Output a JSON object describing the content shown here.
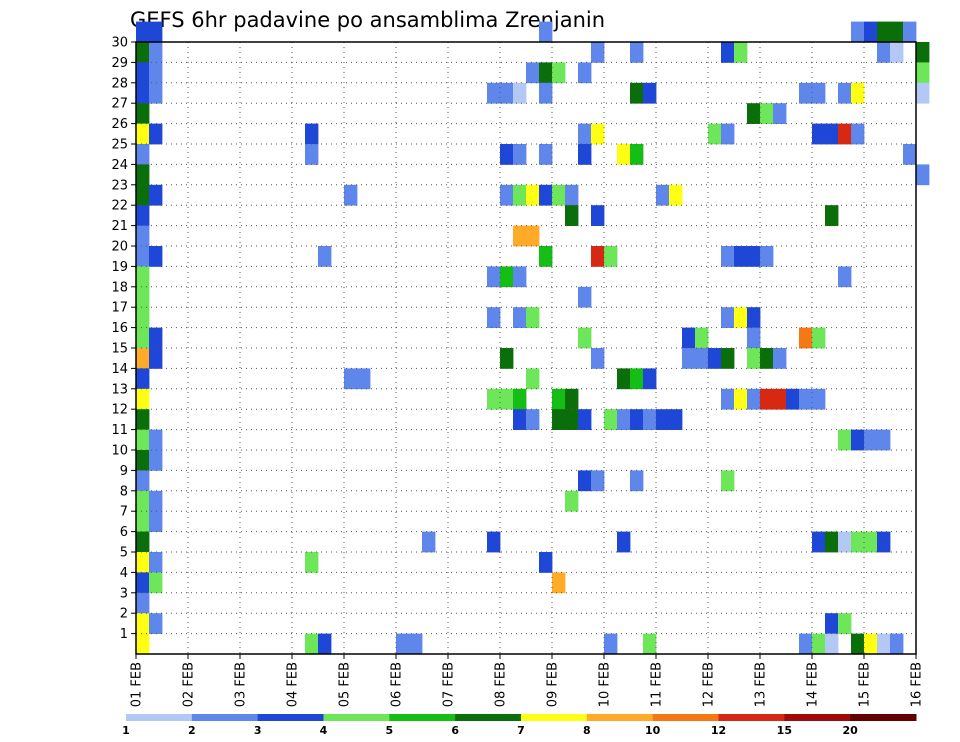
{
  "chart_data": {
    "type": "heatmap",
    "title": "GEFS 6hr padavine po ansamblima Zrenjanin",
    "x_tick_labels": [
      "01 FEB",
      "02 FEB",
      "03 FEB",
      "04 FEB",
      "05 FEB",
      "06 FEB",
      "07 FEB",
      "08 FEB",
      "09 FEB",
      "10 FEB",
      "11 FEB",
      "12 FEB",
      "13 FEB",
      "14 FEB",
      "15 FEB",
      "16 FEB"
    ],
    "y_tick_labels": [
      "1",
      "2",
      "3",
      "4",
      "5",
      "6",
      "7",
      "8",
      "9",
      "10",
      "11",
      "12",
      "13",
      "14",
      "15",
      "16",
      "17",
      "18",
      "19",
      "20",
      "21",
      "22",
      "23",
      "24",
      "25",
      "26",
      "27",
      "28",
      "29",
      "30"
    ],
    "x_range_days": [
      0,
      15
    ],
    "y_range_member": [
      0,
      30
    ],
    "time_step_hours": 6,
    "grid": true,
    "legend": {
      "placement": "bottom",
      "boundaries": [
        "1",
        "2",
        "3",
        "4",
        "5",
        "6",
        "7",
        "8",
        "10",
        "12",
        "15",
        "20"
      ],
      "colors": [
        "#b4c8f5",
        "#5f87eb",
        "#1e46d7",
        "#6ee65a",
        "#14be14",
        "#0a6e0a",
        "#ffff14",
        "#ffaa28",
        "#f57814",
        "#d72814",
        "#a00a0a",
        "#640000"
      ]
    },
    "cells": [
      [
        0,
        30,
        2
      ],
      [
        1,
        30,
        2
      ],
      [
        0,
        29,
        5
      ],
      [
        1,
        29,
        1
      ],
      [
        0,
        28,
        2
      ],
      [
        1,
        28,
        1
      ],
      [
        0,
        27,
        2
      ],
      [
        1,
        27,
        1
      ],
      [
        0,
        26,
        5
      ],
      [
        0,
        25,
        6
      ],
      [
        1,
        25,
        2
      ],
      [
        0,
        24,
        1
      ],
      [
        0,
        23,
        5
      ],
      [
        0,
        22,
        5
      ],
      [
        1,
        22,
        2
      ],
      [
        0,
        21,
        2
      ],
      [
        0,
        20,
        1
      ],
      [
        0,
        19,
        1
      ],
      [
        1,
        19,
        2
      ],
      [
        0,
        18,
        3
      ],
      [
        0,
        17,
        3
      ],
      [
        0,
        16,
        3
      ],
      [
        0,
        15,
        3
      ],
      [
        1,
        15,
        2
      ],
      [
        0,
        14,
        7
      ],
      [
        1,
        14,
        2
      ],
      [
        0,
        13,
        2
      ],
      [
        0,
        12,
        6
      ],
      [
        0,
        11,
        5
      ],
      [
        0,
        10,
        3
      ],
      [
        1,
        10,
        1
      ],
      [
        0,
        9,
        5
      ],
      [
        1,
        9,
        1
      ],
      [
        0,
        8,
        1
      ],
      [
        0,
        7,
        3
      ],
      [
        1,
        7,
        1
      ],
      [
        0,
        6,
        3
      ],
      [
        1,
        6,
        1
      ],
      [
        0,
        5,
        5
      ],
      [
        0,
        4,
        6
      ],
      [
        1,
        4,
        1
      ],
      [
        0,
        3,
        2
      ],
      [
        1,
        3,
        3
      ],
      [
        0,
        2,
        1
      ],
      [
        0,
        1,
        6
      ],
      [
        1,
        1,
        1
      ],
      [
        0,
        0,
        6
      ],
      [
        31,
        30,
        1
      ],
      [
        55,
        30,
        1
      ],
      [
        56,
        30,
        2
      ],
      [
        57,
        30,
        5
      ],
      [
        58,
        30,
        5
      ],
      [
        59,
        30,
        1
      ],
      [
        35,
        29,
        1
      ],
      [
        38,
        29,
        1
      ],
      [
        45,
        29,
        2
      ],
      [
        46,
        29,
        3
      ],
      [
        57,
        29,
        1
      ],
      [
        58,
        29,
        0
      ],
      [
        60,
        29,
        5
      ],
      [
        30,
        28,
        1
      ],
      [
        31,
        28,
        5
      ],
      [
        32,
        28,
        3
      ],
      [
        34,
        28,
        1
      ],
      [
        60,
        28,
        3
      ],
      [
        27,
        27,
        1
      ],
      [
        28,
        27,
        1
      ],
      [
        29,
        27,
        0
      ],
      [
        31,
        27,
        1
      ],
      [
        38,
        27,
        5
      ],
      [
        39,
        27,
        2
      ],
      [
        51,
        27,
        1
      ],
      [
        52,
        27,
        1
      ],
      [
        54,
        27,
        1
      ],
      [
        55,
        27,
        6
      ],
      [
        60,
        27,
        0
      ],
      [
        47,
        26,
        5
      ],
      [
        48,
        26,
        3
      ],
      [
        49,
        26,
        1
      ],
      [
        13,
        25,
        2
      ],
      [
        34,
        25,
        1
      ],
      [
        35,
        25,
        6
      ],
      [
        44,
        25,
        3
      ],
      [
        45,
        25,
        1
      ],
      [
        52,
        25,
        2
      ],
      [
        53,
        25,
        2
      ],
      [
        54,
        25,
        9
      ],
      [
        55,
        25,
        1
      ],
      [
        13,
        24,
        1
      ],
      [
        28,
        24,
        2
      ],
      [
        29,
        24,
        1
      ],
      [
        31,
        24,
        1
      ],
      [
        34,
        24,
        2
      ],
      [
        37,
        24,
        6
      ],
      [
        38,
        24,
        4
      ],
      [
        59,
        24,
        1
      ],
      [
        60,
        23,
        1
      ],
      [
        16,
        22,
        1
      ],
      [
        28,
        22,
        1
      ],
      [
        29,
        22,
        3
      ],
      [
        30,
        22,
        6
      ],
      [
        31,
        22,
        2
      ],
      [
        32,
        22,
        3
      ],
      [
        33,
        22,
        1
      ],
      [
        40,
        22,
        1
      ],
      [
        41,
        22,
        6
      ],
      [
        33,
        21,
        5
      ],
      [
        35,
        21,
        2
      ],
      [
        53,
        21,
        5
      ],
      [
        29,
        20,
        7
      ],
      [
        30,
        20,
        7
      ],
      [
        14,
        19,
        1
      ],
      [
        31,
        19,
        4
      ],
      [
        35,
        19,
        9
      ],
      [
        36,
        19,
        3
      ],
      [
        45,
        19,
        1
      ],
      [
        46,
        19,
        2
      ],
      [
        47,
        19,
        2
      ],
      [
        48,
        19,
        1
      ],
      [
        27,
        18,
        1
      ],
      [
        28,
        18,
        4
      ],
      [
        29,
        18,
        1
      ],
      [
        54,
        18,
        1
      ],
      [
        34,
        17,
        1
      ],
      [
        27,
        16,
        1
      ],
      [
        29,
        16,
        1
      ],
      [
        30,
        16,
        3
      ],
      [
        45,
        16,
        1
      ],
      [
        46,
        16,
        6
      ],
      [
        47,
        16,
        2
      ],
      [
        34,
        15,
        3
      ],
      [
        42,
        15,
        2
      ],
      [
        43,
        15,
        3
      ],
      [
        47,
        15,
        1
      ],
      [
        51,
        15,
        8
      ],
      [
        52,
        15,
        3
      ],
      [
        28,
        14,
        5
      ],
      [
        35,
        14,
        1
      ],
      [
        42,
        14,
        1
      ],
      [
        43,
        14,
        1
      ],
      [
        44,
        14,
        2
      ],
      [
        45,
        14,
        5
      ],
      [
        47,
        14,
        3
      ],
      [
        48,
        14,
        5
      ],
      [
        49,
        14,
        1
      ],
      [
        16,
        13,
        1
      ],
      [
        17,
        13,
        1
      ],
      [
        30,
        13,
        3
      ],
      [
        37,
        13,
        5
      ],
      [
        38,
        13,
        4
      ],
      [
        39,
        13,
        2
      ],
      [
        27,
        12,
        3
      ],
      [
        28,
        12,
        3
      ],
      [
        29,
        12,
        4
      ],
      [
        32,
        12,
        4
      ],
      [
        33,
        12,
        5
      ],
      [
        45,
        12,
        1
      ],
      [
        46,
        12,
        6
      ],
      [
        47,
        12,
        1
      ],
      [
        48,
        12,
        9
      ],
      [
        49,
        12,
        9
      ],
      [
        50,
        12,
        2
      ],
      [
        51,
        12,
        1
      ],
      [
        52,
        12,
        1
      ],
      [
        29,
        11,
        2
      ],
      [
        30,
        11,
        1
      ],
      [
        32,
        11,
        5
      ],
      [
        33,
        11,
        5
      ],
      [
        34,
        11,
        2
      ],
      [
        36,
        11,
        3
      ],
      [
        37,
        11,
        1
      ],
      [
        38,
        11,
        2
      ],
      [
        39,
        11,
        1
      ],
      [
        40,
        11,
        2
      ],
      [
        41,
        11,
        2
      ],
      [
        54,
        10,
        3
      ],
      [
        55,
        10,
        2
      ],
      [
        56,
        10,
        1
      ],
      [
        57,
        10,
        1
      ],
      [
        34,
        8,
        2
      ],
      [
        35,
        8,
        1
      ],
      [
        38,
        8,
        1
      ],
      [
        45,
        8,
        3
      ],
      [
        33,
        7,
        3
      ],
      [
        22,
        5,
        1
      ],
      [
        27,
        5,
        2
      ],
      [
        37,
        5,
        2
      ],
      [
        52,
        5,
        2
      ],
      [
        53,
        5,
        5
      ],
      [
        54,
        5,
        0
      ],
      [
        55,
        5,
        3
      ],
      [
        56,
        5,
        3
      ],
      [
        57,
        5,
        2
      ],
      [
        13,
        4,
        3
      ],
      [
        31,
        4,
        2
      ],
      [
        32,
        3,
        7
      ],
      [
        53,
        1,
        2
      ],
      [
        54,
        1,
        3
      ],
      [
        13,
        0,
        3
      ],
      [
        14,
        0,
        2
      ],
      [
        20,
        0,
        1
      ],
      [
        21,
        0,
        1
      ],
      [
        36,
        0,
        1
      ],
      [
        39,
        0,
        3
      ],
      [
        51,
        0,
        1
      ],
      [
        52,
        0,
        3
      ],
      [
        53,
        0,
        0
      ],
      [
        55,
        0,
        5
      ],
      [
        56,
        0,
        6
      ],
      [
        57,
        0,
        0
      ],
      [
        58,
        0,
        1
      ]
    ]
  }
}
